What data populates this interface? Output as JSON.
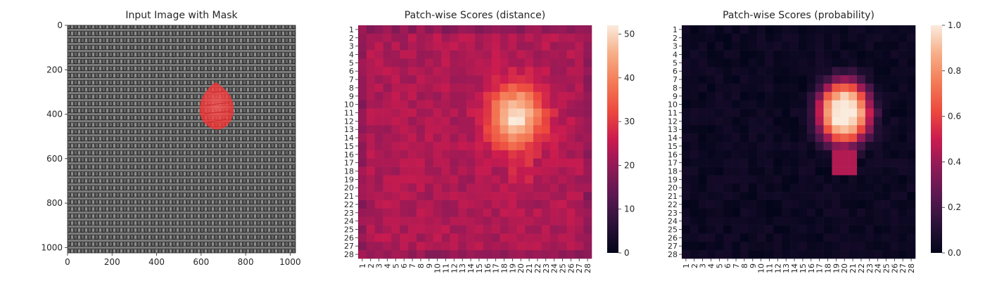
{
  "chart_data": [
    {
      "type": "image",
      "title": "Input Image with Mask",
      "xlim": [
        0,
        1024
      ],
      "ylim": [
        1024,
        0
      ],
      "x_ticks": [
        0,
        200,
        400,
        600,
        800,
        1000
      ],
      "y_ticks": [
        0,
        200,
        400,
        600,
        800,
        1000
      ],
      "grid": false,
      "background": "#4a4a4a",
      "mask": {
        "color": "#ff3b3b",
        "center": [
          655,
          385
        ],
        "extent_x": [
          600,
          705
        ],
        "extent_y": [
          265,
          500
        ]
      }
    },
    {
      "type": "heatmap",
      "title": "Patch-wise Scores (distance)",
      "x_ticks": [
        "1",
        "2",
        "3",
        "4",
        "5",
        "6",
        "7",
        "8",
        "9",
        "10",
        "11",
        "12",
        "13",
        "14",
        "15",
        "16",
        "17",
        "18",
        "19",
        "20",
        "21",
        "22",
        "23",
        "24",
        "25",
        "26",
        "27",
        "28"
      ],
      "y_ticks": [
        "1",
        "2",
        "3",
        "4",
        "5",
        "6",
        "7",
        "8",
        "9",
        "10",
        "11",
        "12",
        "13",
        "14",
        "15",
        "16",
        "17",
        "18",
        "19",
        "20",
        "21",
        "22",
        "23",
        "24",
        "25",
        "26",
        "27",
        "28"
      ],
      "colorbar": {
        "min": 0,
        "max": 52,
        "ticks": [
          0,
          10,
          20,
          30,
          40,
          50
        ]
      },
      "base_value": 23,
      "hotspot": {
        "center_row": 11.5,
        "center_col": 19.5,
        "peak": 52,
        "sigma_row": 2.6,
        "sigma_col": 2.2
      },
      "colormap": "rocket"
    },
    {
      "type": "heatmap",
      "title": "Patch-wise Scores (probability)",
      "x_ticks": [
        "1",
        "2",
        "3",
        "4",
        "5",
        "6",
        "7",
        "8",
        "9",
        "10",
        "11",
        "12",
        "13",
        "14",
        "15",
        "16",
        "17",
        "18",
        "19",
        "20",
        "21",
        "22",
        "23",
        "24",
        "25",
        "26",
        "27",
        "28"
      ],
      "y_ticks": [
        "1",
        "2",
        "3",
        "4",
        "5",
        "6",
        "7",
        "8",
        "9",
        "10",
        "11",
        "12",
        "13",
        "14",
        "15",
        "16",
        "17",
        "18",
        "19",
        "20",
        "21",
        "22",
        "23",
        "24",
        "25",
        "26",
        "27",
        "28"
      ],
      "colorbar": {
        "min": 0.0,
        "max": 1.0,
        "ticks": [
          "0.0",
          "0.2",
          "0.4",
          "0.6",
          "0.8",
          "1.0"
        ]
      },
      "base_value": 0.03,
      "hotspot": {
        "center_row": 11,
        "center_col": 20,
        "peak": 1.0,
        "sigma_row": 3.2,
        "sigma_col": 2.6
      },
      "colormap": "rocket"
    }
  ]
}
